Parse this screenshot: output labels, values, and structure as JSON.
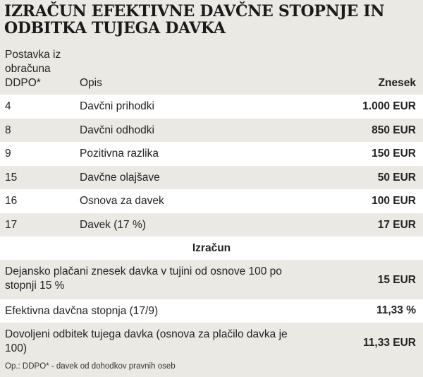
{
  "title": "IZRAČUN EFEKTIVNE DAVČNE STOPNJE IN ODBITKA TUJEGA DAVKA",
  "header": {
    "col1": "Postavka iz obračuna DDPO*",
    "col2": "Opis",
    "col3": "Znesek"
  },
  "rows": [
    {
      "item": "4",
      "description": "Davčni prihodki",
      "amount": "1.000 EUR"
    },
    {
      "item": "8",
      "description": "Davčni odhodki",
      "amount": "850 EUR"
    },
    {
      "item": "9",
      "description": "Pozitivna razlika",
      "amount": "150 EUR"
    },
    {
      "item": "15",
      "description": "Davčne olajšave",
      "amount": "50 EUR"
    },
    {
      "item": "16",
      "description": "Osnova za davek",
      "amount": "100 EUR"
    },
    {
      "item": "17",
      "description": "Davek (17 %)",
      "amount": "17 EUR"
    }
  ],
  "calculation": {
    "heading": "Izračun",
    "rows": [
      {
        "description": "Dejansko plačani znesek davka v tujini od osnove 100 po stopnji 15 %",
        "amount": "15 EUR"
      },
      {
        "description": "Efektivna davčna stopnja (17/9)",
        "amount": "11,33 %"
      },
      {
        "description": "Dovoljeni odbitek tujega davka (osnova za plačilo davka je 100)",
        "amount": "11,33 EUR"
      }
    ]
  },
  "footnote": "Op.: DDPO* - davek od dohodkov pravnih oseb",
  "colors": {
    "band_light": "#ffffff",
    "band_dark": "#ebe9e4",
    "text": "#1a1a1a"
  }
}
